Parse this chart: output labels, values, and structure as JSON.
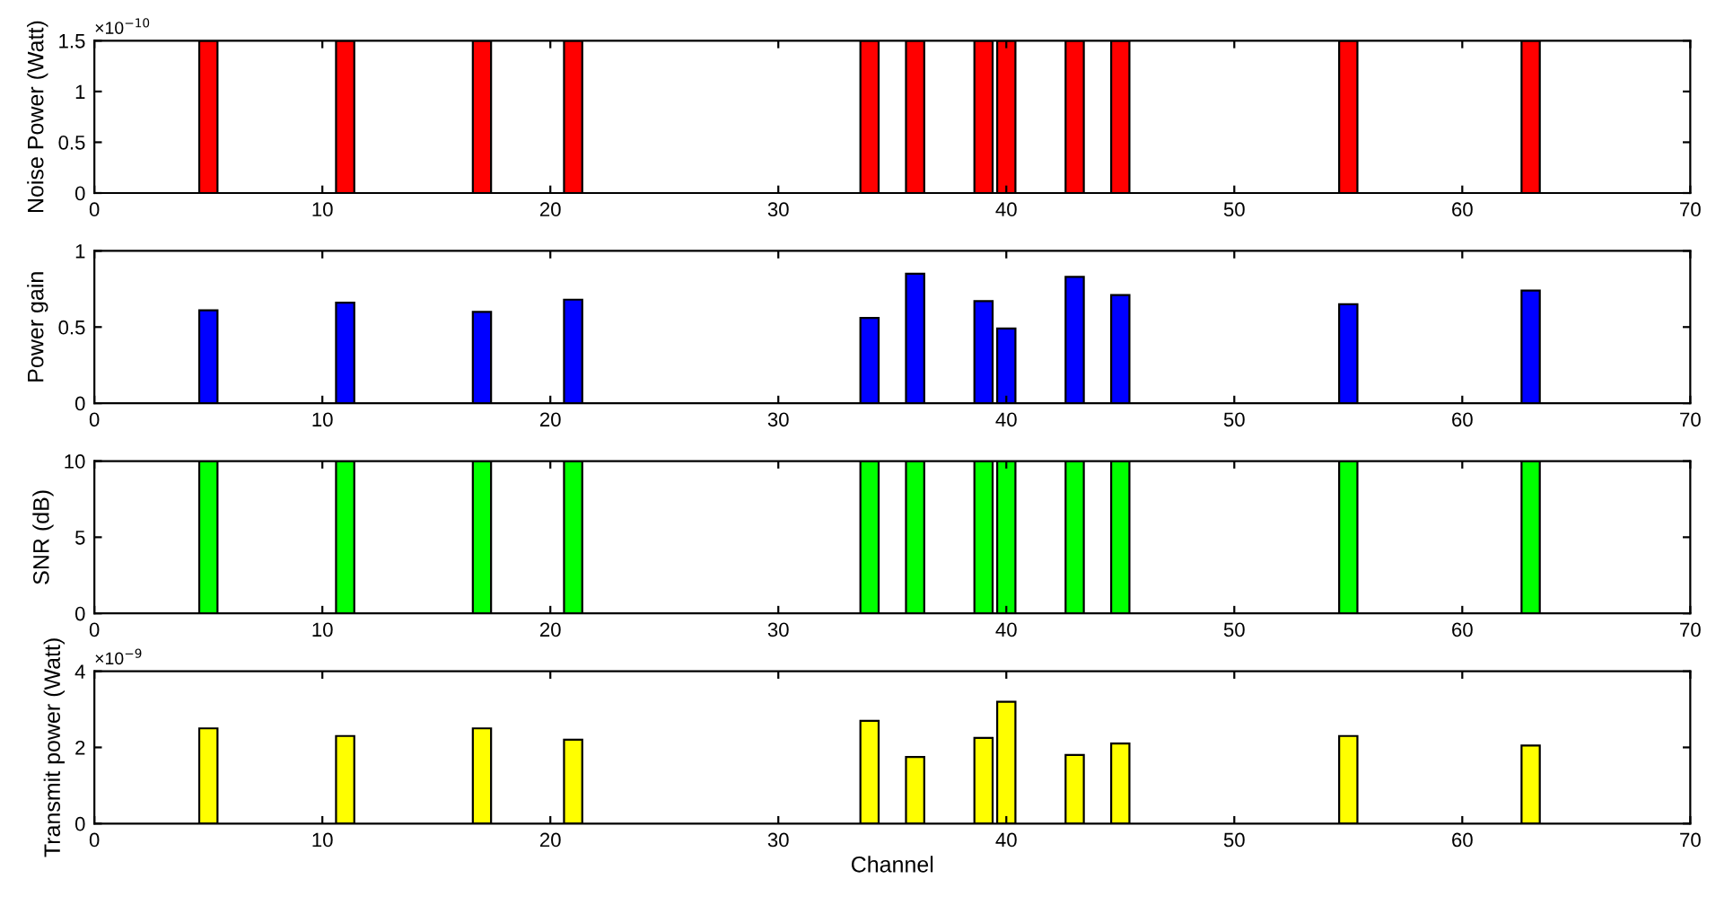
{
  "chart_data": [
    {
      "type": "bar",
      "ylabel": "Noise Power (Watt)",
      "annotations": [
        "×10$^{−10}$"
      ],
      "x": [
        5,
        11,
        17,
        21,
        34,
        36,
        39,
        40,
        43,
        45,
        55,
        63
      ],
      "series": [
        {
          "color": "#ff0000",
          "values": [
            1.5,
            1.5,
            1.5,
            1.5,
            1.5,
            1.5,
            1.5,
            1.5,
            1.5,
            1.5,
            1.5,
            1.5
          ]
        }
      ],
      "xlim": [
        0,
        70
      ],
      "xticks": [
        0,
        10,
        20,
        30,
        40,
        50,
        60,
        70
      ],
      "ylim": [
        0,
        1.5
      ],
      "yticks": [
        0,
        0.5,
        1,
        1.5
      ],
      "grid": false
    },
    {
      "type": "bar",
      "ylabel": "Power gain",
      "x": [
        5,
        11,
        17,
        21,
        34,
        36,
        39,
        40,
        43,
        45,
        55,
        63
      ],
      "series": [
        {
          "color": "#0000ff",
          "values": [
            0.61,
            0.66,
            0.6,
            0.68,
            0.56,
            0.85,
            0.67,
            0.49,
            0.83,
            0.71,
            0.65,
            0.74
          ]
        }
      ],
      "xlim": [
        0,
        70
      ],
      "xticks": [
        0,
        10,
        20,
        30,
        40,
        50,
        60,
        70
      ],
      "ylim": [
        0,
        1
      ],
      "yticks": [
        0,
        0.5,
        1
      ],
      "grid": false
    },
    {
      "type": "bar",
      "ylabel": "SNR (dB)",
      "x": [
        5,
        11,
        17,
        21,
        34,
        36,
        39,
        40,
        43,
        45,
        55,
        63
      ],
      "series": [
        {
          "color": "#00ff00",
          "values": [
            10,
            10,
            10,
            10,
            10,
            10,
            10,
            10,
            10,
            10,
            10,
            10
          ]
        }
      ],
      "xlim": [
        0,
        70
      ],
      "xticks": [
        0,
        10,
        20,
        30,
        40,
        50,
        60,
        70
      ],
      "ylim": [
        0,
        10
      ],
      "yticks": [
        0,
        5,
        10
      ],
      "grid": false
    },
    {
      "type": "bar",
      "ylabel": "Transmit power (Watt)",
      "xlabel": "Channel",
      "annotations": [
        "×10$^{−9}$"
      ],
      "x": [
        5,
        11,
        17,
        21,
        34,
        36,
        39,
        40,
        43,
        45,
        55,
        63
      ],
      "series": [
        {
          "color": "#ffff00",
          "values": [
            2.5,
            2.3,
            2.5,
            2.2,
            2.7,
            1.75,
            2.25,
            3.2,
            1.8,
            2.1,
            2.3,
            2.05
          ]
        }
      ],
      "xlim": [
        0,
        70
      ],
      "xticks": [
        0,
        10,
        20,
        30,
        40,
        50,
        60,
        70
      ],
      "ylim": [
        0,
        4
      ],
      "yticks": [
        0,
        2,
        4
      ],
      "grid": false
    }
  ]
}
